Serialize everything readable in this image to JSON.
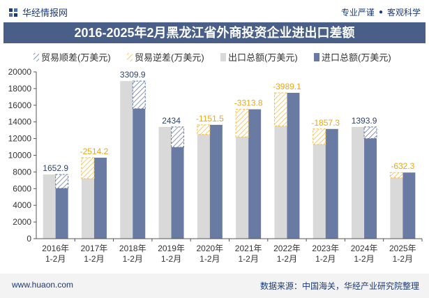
{
  "header": {
    "brand": "华经情报网",
    "slogan_left": "专业严谨",
    "slogan_dot": "●",
    "slogan_right": "客观科学"
  },
  "footer": {
    "url": "www.huaon.com",
    "source": "数据来源：中国海关，华经产业研究院整理"
  },
  "colors": {
    "export": "#d9d9d9",
    "import": "#6a7ba3",
    "surplus_hatch": "#6a7ba3",
    "deficit_hatch": "#f2c04e",
    "surplus_label": "#2e4470",
    "deficit_label": "#e8a815"
  },
  "chart_data": {
    "type": "bar",
    "title": "2016-2025年2月黑龙江省外商投资企业进出口差额",
    "categories": [
      "2016年\n1-2月",
      "2017年\n1-2月",
      "2018年\n1-2月",
      "2019年\n1-2月",
      "2020年\n1-2月",
      "2021年\n1-2月",
      "2022年\n1-2月",
      "2023年\n1-2月",
      "2024年\n1-2月",
      "2025年\n1-2月"
    ],
    "series": [
      {
        "name": "出口总额(万美元)",
        "values": [
          7700,
          7200,
          18900,
          13400,
          12500,
          12200,
          13500,
          11300,
          13400,
          7300
        ]
      },
      {
        "name": "进口总额(万美元)",
        "values": [
          6047,
          9714,
          15590,
          10966,
          13652,
          15514,
          17489,
          13157,
          12006,
          7932
        ]
      }
    ],
    "balance": {
      "name": "贸易差额",
      "values": [
        1652.9,
        -2514.2,
        3309.9,
        2434,
        -1151.5,
        -3313.8,
        -3989.1,
        -1857.3,
        1393.9,
        -632.3
      ],
      "labels": [
        "1652.9",
        "-2514.2",
        "3309.9",
        "2434",
        "-1151.5",
        "-3313.8",
        "-3989.1",
        "-1857.3",
        "1393.9",
        "-632.3"
      ]
    },
    "legend": [
      "贸易顺差(万美元)",
      "贸易逆差(万美元)",
      "出口总额(万美元)",
      "进口总额(万美元)"
    ],
    "yticks": [
      "0",
      "2000",
      "4000",
      "6000",
      "8000",
      "10000",
      "12000",
      "14000",
      "16000",
      "18000",
      "20000"
    ],
    "ylim": [
      0,
      20000
    ],
    "xlabel": "",
    "ylabel": "",
    "legend_position": "top"
  }
}
